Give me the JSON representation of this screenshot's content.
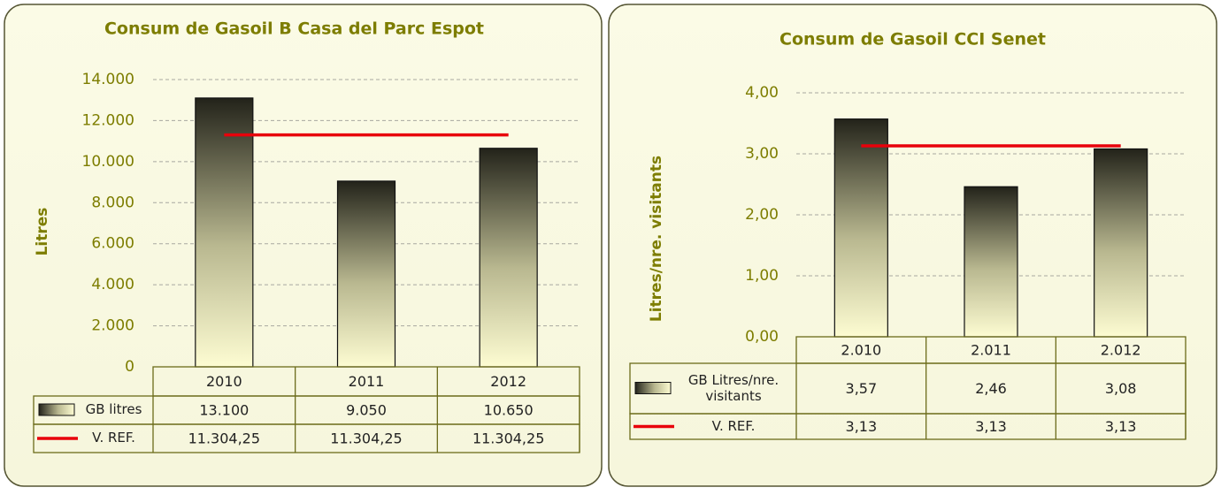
{
  "chart_data": [
    {
      "type": "bar",
      "title": "Consum de Gasoil B Casa del Parc Espot",
      "y_label": "Litres",
      "categories": [
        "2010",
        "2011",
        "2012"
      ],
      "series": [
        {
          "name": "GB litres",
          "type": "bar",
          "color": "#23231a",
          "values": [
            13100,
            9050,
            10650
          ],
          "value_labels": [
            "13.100",
            "9.050",
            "10.650"
          ]
        },
        {
          "name": "V. REF.",
          "type": "line",
          "color": "#e8000b",
          "values": [
            11304.25,
            11304.25,
            11304.25
          ],
          "value_labels": [
            "11.304,25",
            "11.304,25",
            "11.304,25"
          ]
        }
      ],
      "ylim": [
        0,
        14000
      ],
      "yticks": [
        0,
        {
          "value": 2000,
          "label": "2.000"
        },
        {
          "value": 4000,
          "label": "4.000"
        },
        {
          "value": 6000,
          "label": "6.000"
        },
        {
          "value": 8000,
          "label": "8.000"
        },
        {
          "value": 10000,
          "label": "10.000"
        },
        {
          "value": 12000,
          "label": "12.000"
        },
        {
          "value": 14000,
          "label": "14.000"
        }
      ],
      "grid": true
    },
    {
      "type": "bar",
      "title": "Consum de Gasoil CCI Senet",
      "y_label": "Litres/nre. visitants",
      "categories": [
        "2.010",
        "2.011",
        "2.012"
      ],
      "series": [
        {
          "name": "GB Litres/nre. visitants",
          "type": "bar",
          "color": "#23231a",
          "values": [
            3.57,
            2.46,
            3.08
          ],
          "value_labels": [
            "3,57",
            "2,46",
            "3,08"
          ]
        },
        {
          "name": "V. REF.",
          "type": "line",
          "color": "#e8000b",
          "values": [
            3.13,
            3.13,
            3.13
          ],
          "value_labels": [
            "3,13",
            "3,13",
            "3,13"
          ]
        }
      ],
      "ylim": [
        0,
        4
      ],
      "yticks": [
        {
          "value": 0,
          "label": "0,00"
        },
        {
          "value": 1,
          "label": "1,00"
        },
        {
          "value": 2,
          "label": "2,00"
        },
        {
          "value": 3,
          "label": "3,00"
        },
        {
          "value": 4,
          "label": "4,00"
        }
      ],
      "grid": true
    }
  ]
}
